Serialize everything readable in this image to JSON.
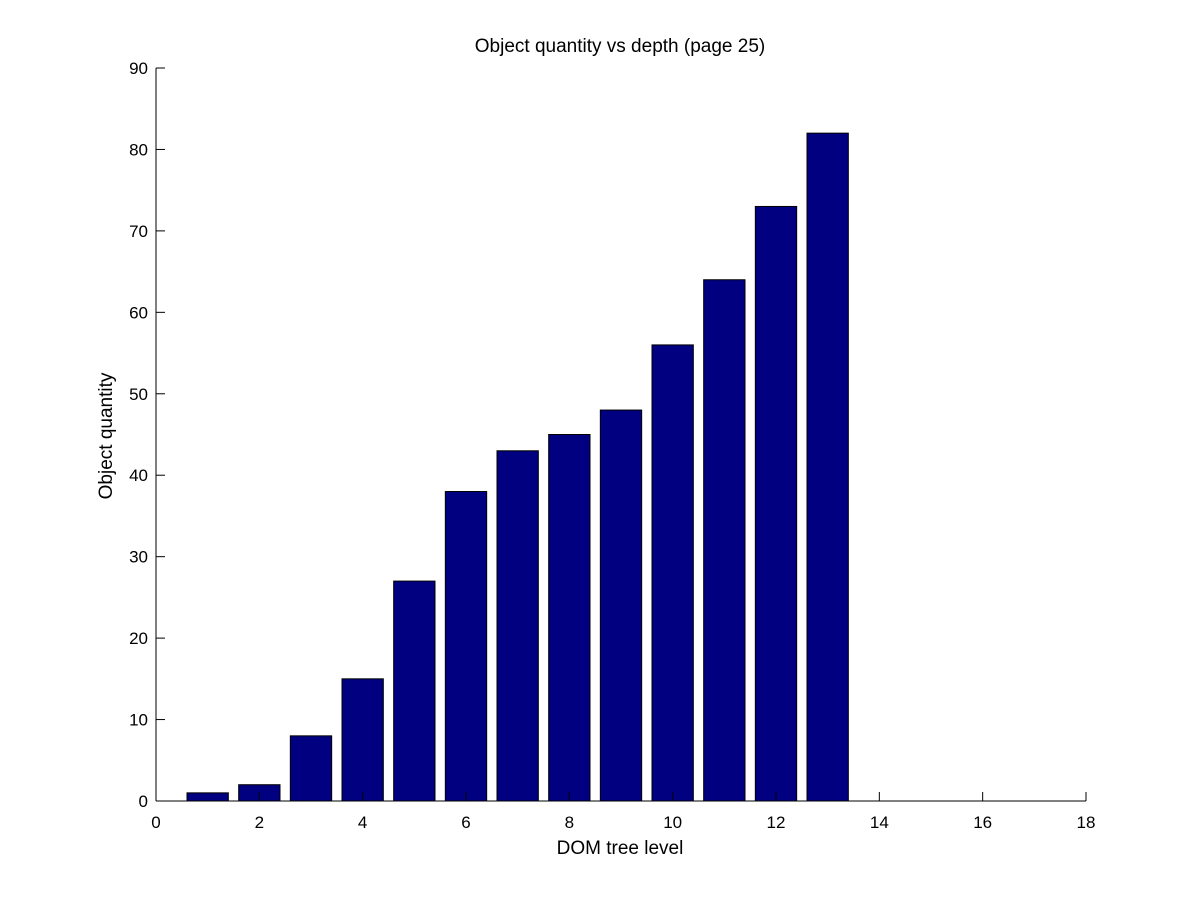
{
  "chart_data": {
    "type": "bar",
    "title": "Object quantity vs depth (page 25)",
    "xlabel": "DOM tree level",
    "ylabel": "Object quantity",
    "x": [
      1,
      2,
      3,
      4,
      5,
      6,
      7,
      8,
      9,
      10,
      11,
      12,
      13
    ],
    "values": [
      1,
      2,
      8,
      15,
      27,
      38,
      43,
      45,
      48,
      56,
      64,
      73,
      82
    ],
    "xlim": [
      0,
      18
    ],
    "ylim": [
      0,
      90
    ],
    "xticks": [
      0,
      2,
      4,
      6,
      8,
      10,
      12,
      14,
      16,
      18
    ],
    "yticks": [
      0,
      10,
      20,
      30,
      40,
      50,
      60,
      70,
      80,
      90
    ],
    "grid": false,
    "legend": "none",
    "colors": {
      "bar_fill": "#000080",
      "bar_edge": "#000000",
      "axis": "#000000"
    }
  }
}
